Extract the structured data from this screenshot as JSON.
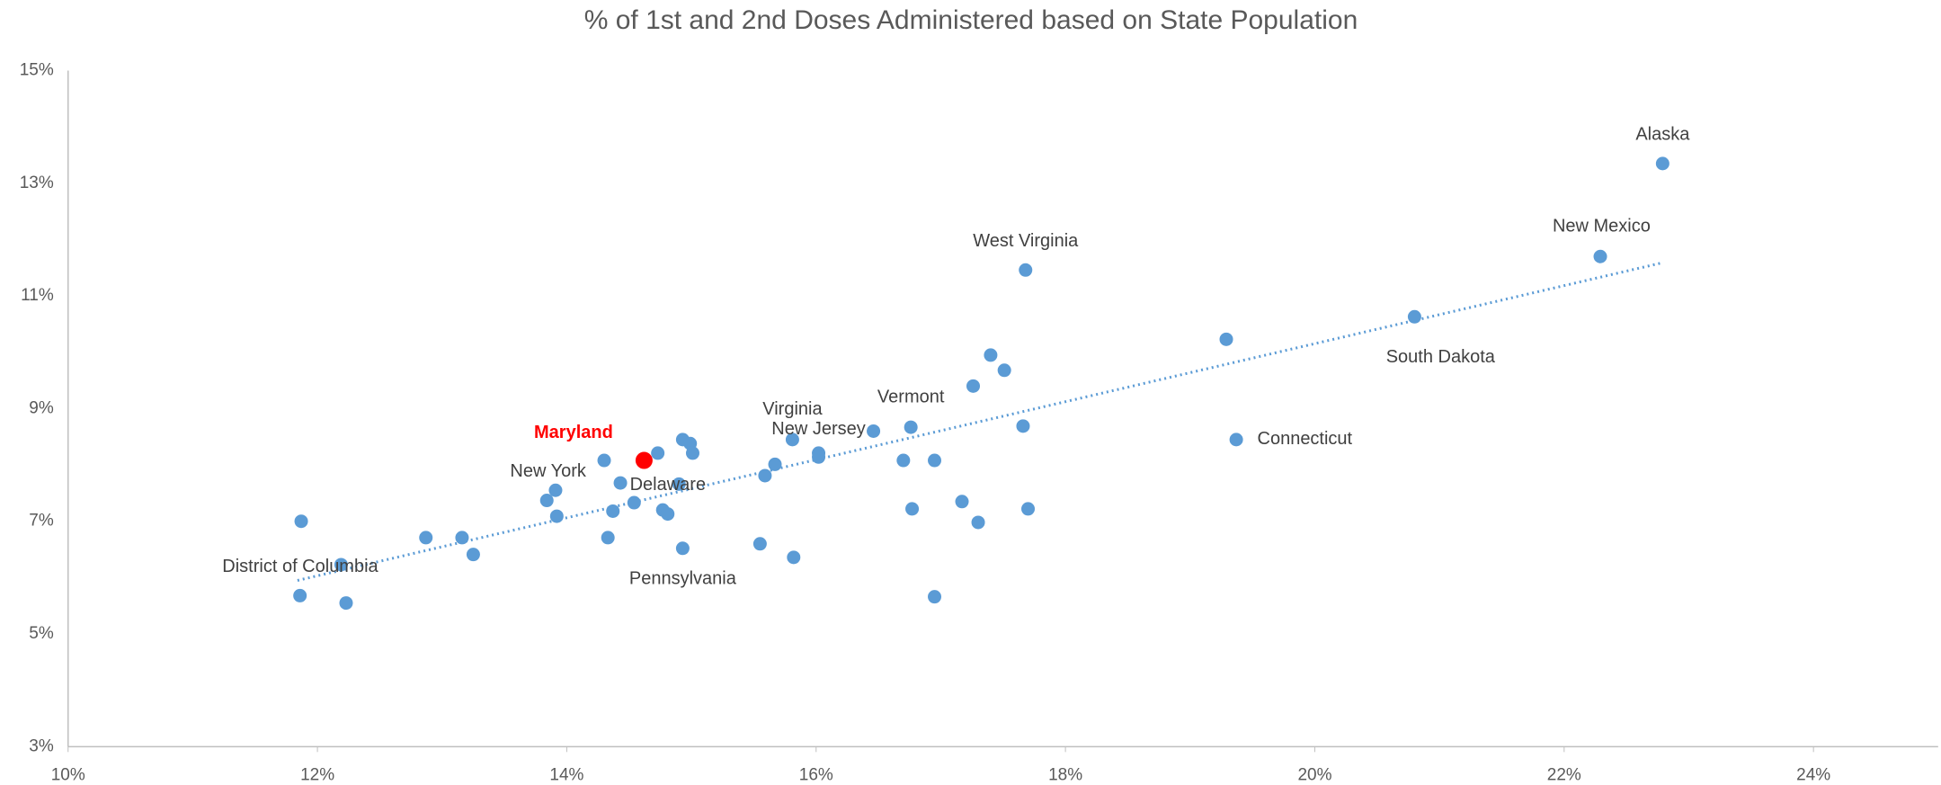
{
  "chart_data": {
    "type": "scatter",
    "title": "% of 1st and 2nd Doses Administered based on State Population",
    "color": "#5b9bd5",
    "x": [
      22.79,
      22.29,
      20.8,
      17.68,
      19.37,
      16.76,
      15.81,
      16.02,
      14.62,
      14.9,
      13.91,
      14.93,
      12.19,
      19.29,
      17.4,
      17.51,
      17.26,
      17.66,
      16.46,
      16.7,
      16.95,
      16.77,
      17.17,
      17.3,
      17.7,
      16.95,
      16.02,
      15.67,
      15.59,
      15.55,
      15.82,
      14.93,
      14.99,
      15.01,
      14.73,
      14.3,
      14.43,
      14.54,
      14.37,
      14.77,
      14.81,
      14.33,
      13.84,
      13.92,
      12.87,
      13.16,
      13.25,
      11.87,
      11.86,
      12.23
    ],
    "y": [
      13.35,
      11.7,
      10.63,
      11.46,
      8.45,
      8.67,
      8.45,
      8.21,
      8.08,
      7.66,
      7.55,
      6.52,
      6.23,
      10.23,
      9.95,
      9.68,
      9.4,
      8.69,
      8.6,
      8.08,
      8.08,
      7.22,
      7.35,
      6.98,
      7.22,
      5.66,
      8.14,
      8.01,
      7.81,
      6.6,
      6.36,
      8.45,
      8.38,
      8.21,
      8.21,
      8.08,
      7.68,
      7.33,
      7.18,
      7.2,
      7.13,
      6.71,
      7.37,
      7.09,
      6.71,
      6.71,
      6.41,
      7.0,
      5.68,
      5.55
    ],
    "labels": [
      "Alaska",
      "New Mexico",
      "South Dakota",
      "West Virginia",
      "Connecticut",
      "Vermont",
      "Virginia",
      "New Jersey",
      "Maryland",
      "Delaware",
      "New York",
      "Pennsylvania",
      "District of Columbia",
      null,
      null,
      null,
      null,
      null,
      null,
      null,
      null,
      null,
      null,
      null,
      null,
      null,
      null,
      null,
      null,
      null,
      null,
      null,
      null,
      null,
      null,
      null,
      null,
      null,
      null,
      null,
      null,
      null,
      null,
      null,
      null,
      null,
      null,
      null,
      null,
      null
    ],
    "colors": [
      "#5b9bd5",
      "#5b9bd5",
      "#5b9bd5",
      "#5b9bd5",
      "#5b9bd5",
      "#5b9bd5",
      "#5b9bd5",
      "#5b9bd5",
      "#ff0000",
      "#5b9bd5",
      "#5b9bd5",
      "#5b9bd5",
      "#5b9bd5",
      "#5b9bd5",
      "#5b9bd5",
      "#5b9bd5",
      "#5b9bd5",
      "#5b9bd5",
      "#5b9bd5",
      "#5b9bd5",
      "#5b9bd5",
      "#5b9bd5",
      "#5b9bd5",
      "#5b9bd5",
      "#5b9bd5",
      "#5b9bd5",
      "#5b9bd5",
      "#5b9bd5",
      "#5b9bd5",
      "#5b9bd5",
      "#5b9bd5",
      "#5b9bd5",
      "#5b9bd5",
      "#5b9bd5",
      "#5b9bd5",
      "#5b9bd5",
      "#5b9bd5",
      "#5b9bd5",
      "#5b9bd5",
      "#5b9bd5",
      "#5b9bd5",
      "#5b9bd5",
      "#5b9bd5",
      "#5b9bd5",
      "#5b9bd5",
      "#5b9bd5",
      "#5b9bd5",
      "#5b9bd5",
      "#5b9bd5",
      "#5b9bd5"
    ],
    "trendline": {
      "x": [
        11.84,
        22.79
      ],
      "y": [
        5.95,
        11.59
      ]
    },
    "xlim": [
      10,
      25
    ],
    "xticks": [
      {
        "value": 10,
        "label": "10%"
      },
      {
        "value": 12,
        "label": "12%"
      },
      {
        "value": 14,
        "label": "14%"
      },
      {
        "value": 16,
        "label": "16%"
      },
      {
        "value": 18,
        "label": "18%"
      },
      {
        "value": 20,
        "label": "20%"
      },
      {
        "value": 22,
        "label": "22%"
      },
      {
        "value": 24,
        "label": "24%"
      }
    ],
    "ylim": [
      3,
      15
    ],
    "yticks": [
      {
        "value": 3,
        "label": "3%"
      },
      {
        "value": 5,
        "label": "5%"
      },
      {
        "value": 7,
        "label": "7%"
      },
      {
        "value": 9,
        "label": "9%"
      },
      {
        "value": 11,
        "label": "11%"
      },
      {
        "value": 13,
        "label": "13%"
      },
      {
        "value": 15,
        "label": "15%"
      }
    ],
    "grid": false
  }
}
